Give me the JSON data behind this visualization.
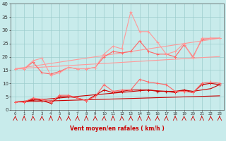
{
  "x": [
    0,
    1,
    2,
    3,
    4,
    5,
    6,
    7,
    8,
    9,
    10,
    11,
    12,
    13,
    14,
    15,
    16,
    17,
    18,
    19,
    20,
    21,
    22,
    23
  ],
  "line_rafales_noisy": [
    15.5,
    15.5,
    18.5,
    19.5,
    13.0,
    14.0,
    16.0,
    15.5,
    15.5,
    16.0,
    21.0,
    24.0,
    23.0,
    37.0,
    29.5,
    29.5,
    25.5,
    21.0,
    22.0,
    25.0,
    19.5,
    27.0,
    27.0,
    27.0
  ],
  "line_rafales_noisy2": [
    15.5,
    15.5,
    18.0,
    14.0,
    13.5,
    14.5,
    16.0,
    15.5,
    15.5,
    16.0,
    20.0,
    22.0,
    21.5,
    22.0,
    26.0,
    22.0,
    21.0,
    21.0,
    20.0,
    24.5,
    20.0,
    26.5,
    27.0,
    27.0
  ],
  "line_rafales_trend1": [
    15.5,
    16.0,
    16.5,
    17.0,
    17.5,
    18.0,
    18.5,
    19.0,
    19.5,
    20.0,
    20.5,
    21.0,
    21.5,
    22.0,
    22.5,
    23.0,
    23.5,
    24.0,
    24.5,
    25.0,
    25.5,
    26.0,
    26.5,
    27.0
  ],
  "line_rafales_trend2": [
    15.5,
    15.7,
    15.9,
    16.1,
    16.3,
    16.5,
    16.7,
    16.9,
    17.1,
    17.3,
    17.5,
    17.7,
    17.9,
    18.1,
    18.3,
    18.5,
    18.7,
    18.9,
    19.1,
    19.3,
    19.5,
    19.7,
    19.9,
    20.1
  ],
  "line_vent_noisy": [
    3.0,
    3.0,
    4.5,
    4.0,
    3.0,
    5.5,
    5.5,
    4.5,
    3.5,
    5.0,
    9.5,
    7.0,
    7.5,
    7.5,
    11.5,
    10.5,
    10.0,
    9.5,
    7.0,
    7.0,
    6.5,
    10.0,
    10.5,
    10.0
  ],
  "line_vent_noisy2": [
    3.0,
    3.0,
    4.0,
    3.5,
    2.5,
    5.0,
    5.0,
    4.5,
    3.5,
    5.5,
    7.5,
    6.5,
    7.0,
    7.5,
    7.5,
    7.5,
    7.0,
    7.0,
    6.5,
    7.5,
    6.5,
    9.5,
    10.0,
    9.5
  ],
  "line_vent_trend1": [
    3.0,
    3.3,
    3.6,
    3.9,
    4.2,
    4.5,
    4.8,
    5.1,
    5.4,
    5.7,
    6.0,
    6.3,
    6.6,
    6.9,
    7.2,
    7.5,
    7.2,
    7.0,
    7.0,
    7.5,
    7.0,
    7.5,
    8.0,
    9.5
  ],
  "line_vent_trend2": [
    3.0,
    3.1,
    3.2,
    3.3,
    3.4,
    3.5,
    3.6,
    3.7,
    3.8,
    3.9,
    4.0,
    4.1,
    4.2,
    4.3,
    4.4,
    4.5,
    4.6,
    4.7,
    4.8,
    4.9,
    5.0,
    5.1,
    5.2,
    5.3
  ],
  "wind_dirs": [
    45,
    135,
    135,
    135,
    90,
    90,
    135,
    90,
    45,
    135,
    45,
    135,
    135,
    45,
    135,
    135,
    135,
    45,
    135,
    45,
    45,
    45,
    135,
    45
  ],
  "color_light": "#FF9999",
  "color_mid": "#FF6666",
  "color_dark": "#CC0000",
  "bg_color": "#C8EBEB",
  "grid_color": "#9DCDCD",
  "xlabel": "Vent moyen/en rafales ( km/h )",
  "ylim": [
    0,
    40
  ],
  "xlim": [
    0,
    23
  ]
}
